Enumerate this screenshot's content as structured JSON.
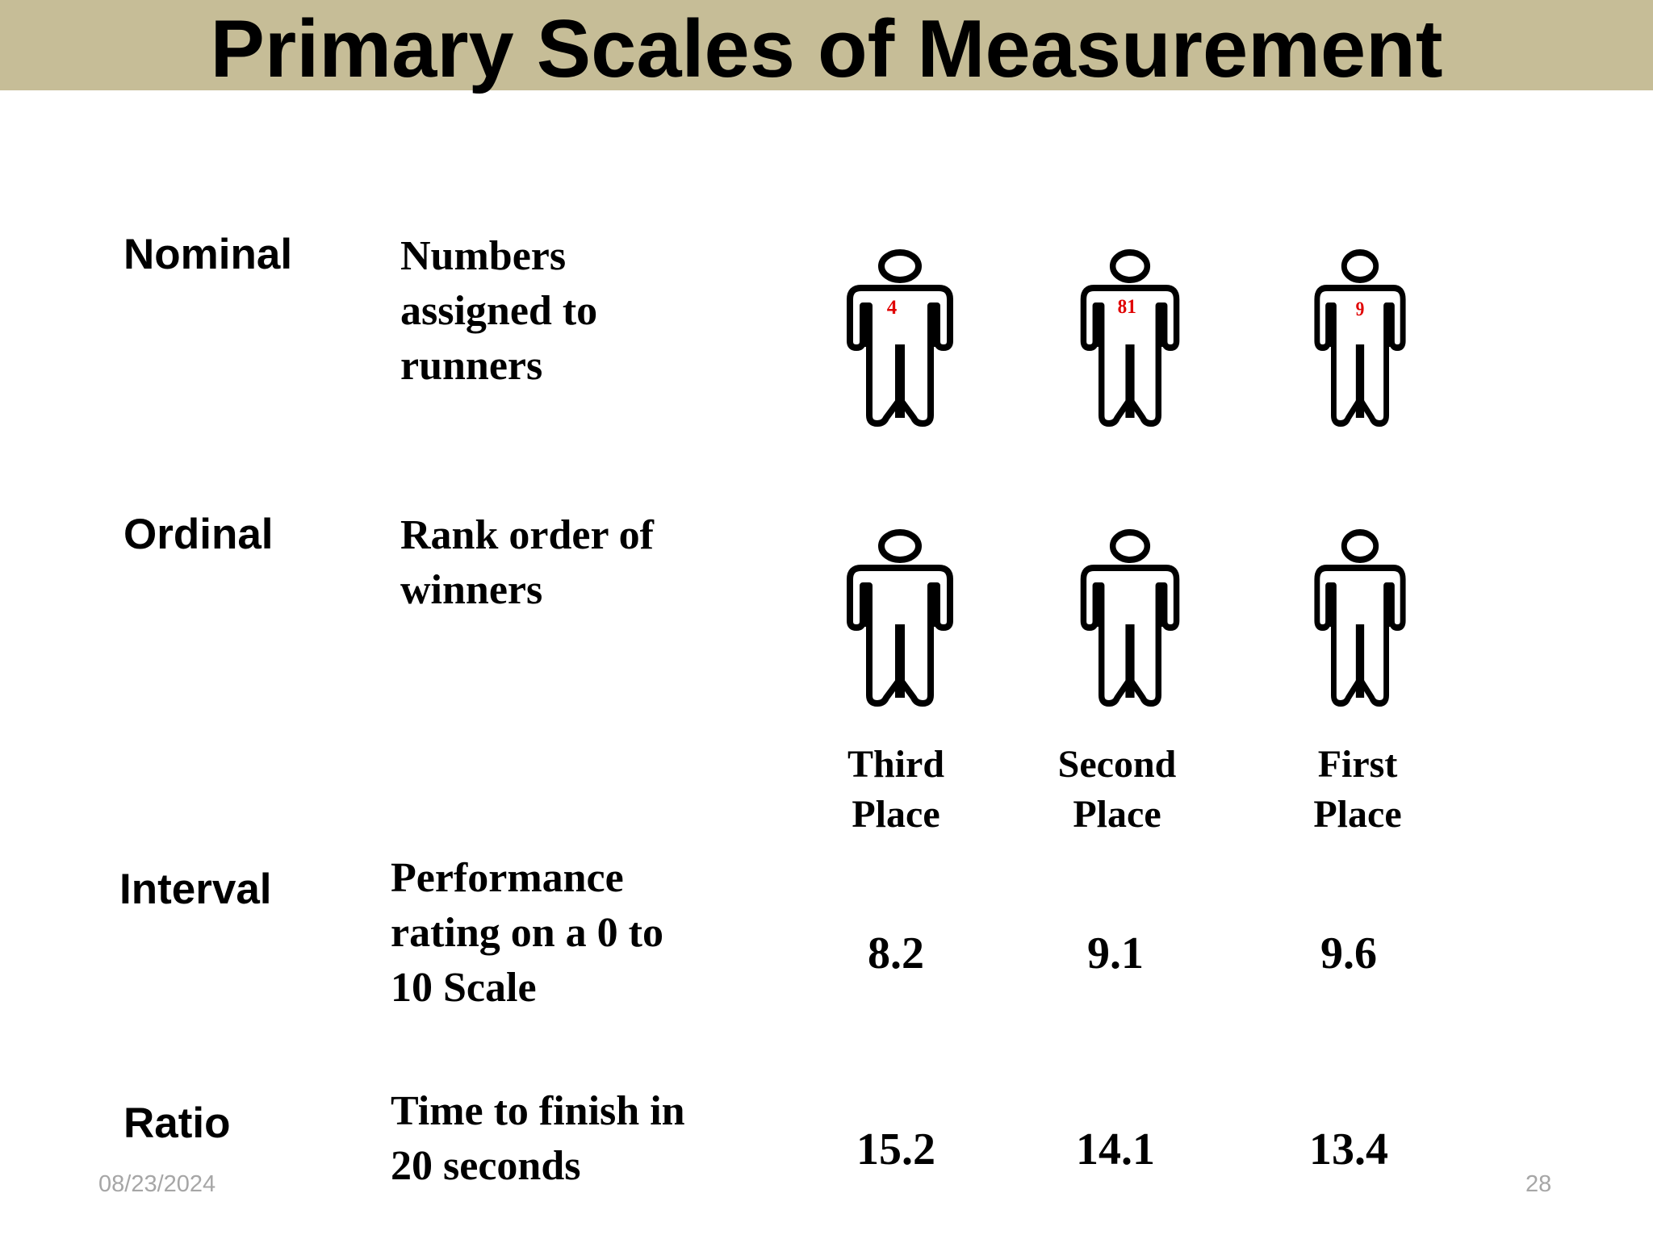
{
  "slide": {
    "title": "Primary Scales of Measurement",
    "date": "08/23/2024",
    "page_number": "28"
  },
  "rows": {
    "nominal": {
      "label": "Nominal",
      "description": [
        "Numbers",
        "assigned to",
        "runners"
      ],
      "bibs": [
        "4",
        "81",
        "9"
      ]
    },
    "ordinal": {
      "label": "Ordinal",
      "description": [
        "Rank order of",
        "winners"
      ],
      "places": [
        [
          "Third",
          "Place"
        ],
        [
          "Second",
          "Place"
        ],
        [
          "First",
          "Place"
        ]
      ]
    },
    "interval": {
      "label": "Interval",
      "description": [
        "Performance",
        "rating on a 0 to",
        "10 Scale"
      ],
      "values": [
        "8.2",
        "9.1",
        "9.6"
      ]
    },
    "ratio": {
      "label": "Ratio",
      "description": [
        "Time to finish in",
        "20 seconds"
      ],
      "values": [
        "15.2",
        "14.1",
        "13.4"
      ]
    }
  },
  "colors": {
    "title_bar": "#c6bd97",
    "bib_numbers": "#e00000",
    "footer_text": "#a6a6a6"
  },
  "icons": [
    "runner-figure-icon"
  ]
}
